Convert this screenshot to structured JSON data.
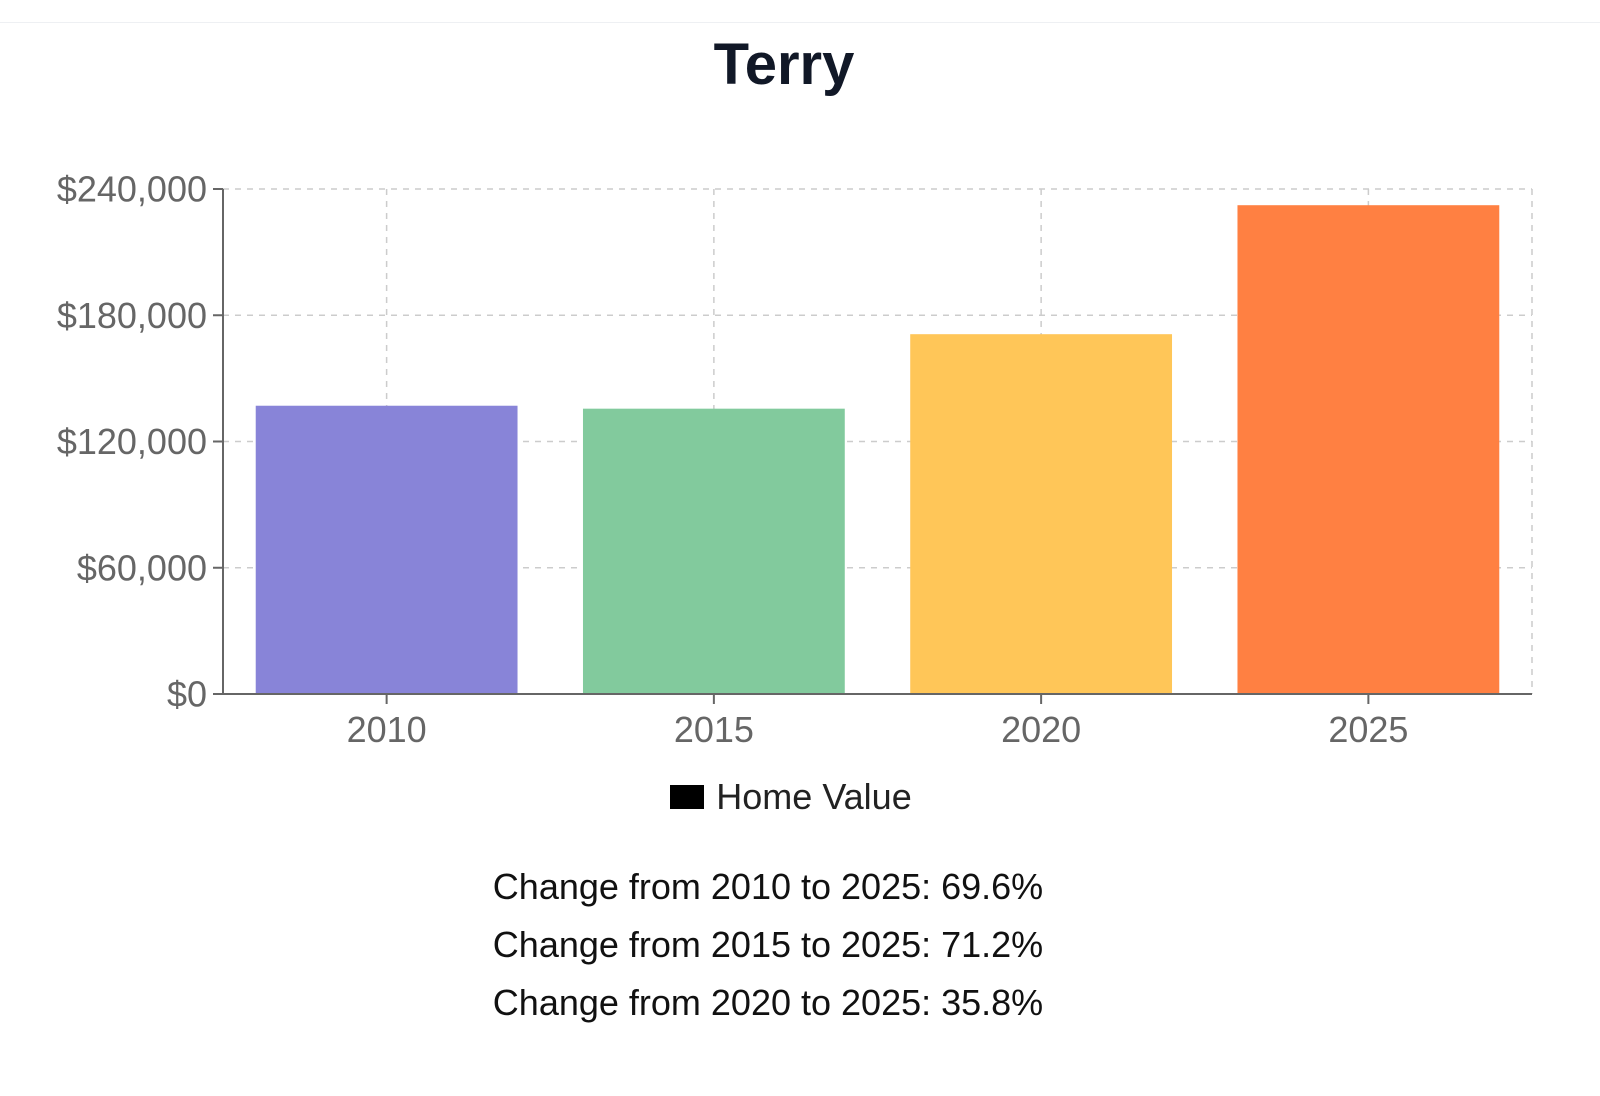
{
  "chart_data": {
    "type": "bar",
    "title": "Terry",
    "categories": [
      "2010",
      "2015",
      "2020",
      "2025"
    ],
    "series": [
      {
        "name": "Home Value",
        "values": [
          137000,
          135600,
          171000,
          232300
        ],
        "colors": [
          "#8884d8",
          "#82ca9d",
          "#ffc658",
          "#ff8042"
        ]
      }
    ],
    "ylim": [
      0,
      240000
    ],
    "yticks": [
      0,
      60000,
      120000,
      180000,
      240000
    ],
    "ytick_labels": [
      "$0",
      "$60,000",
      "$120,000",
      "$180,000",
      "$240,000"
    ],
    "xlabel": "",
    "ylabel": "",
    "grid": true,
    "legend": "bottom-center",
    "legend_swatch_color": "#000000"
  },
  "changes": [
    "Change from 2010 to 2025: 69.6%",
    "Change from 2015 to 2025: 71.2%",
    "Change from 2020 to 2025: 35.8%"
  ]
}
